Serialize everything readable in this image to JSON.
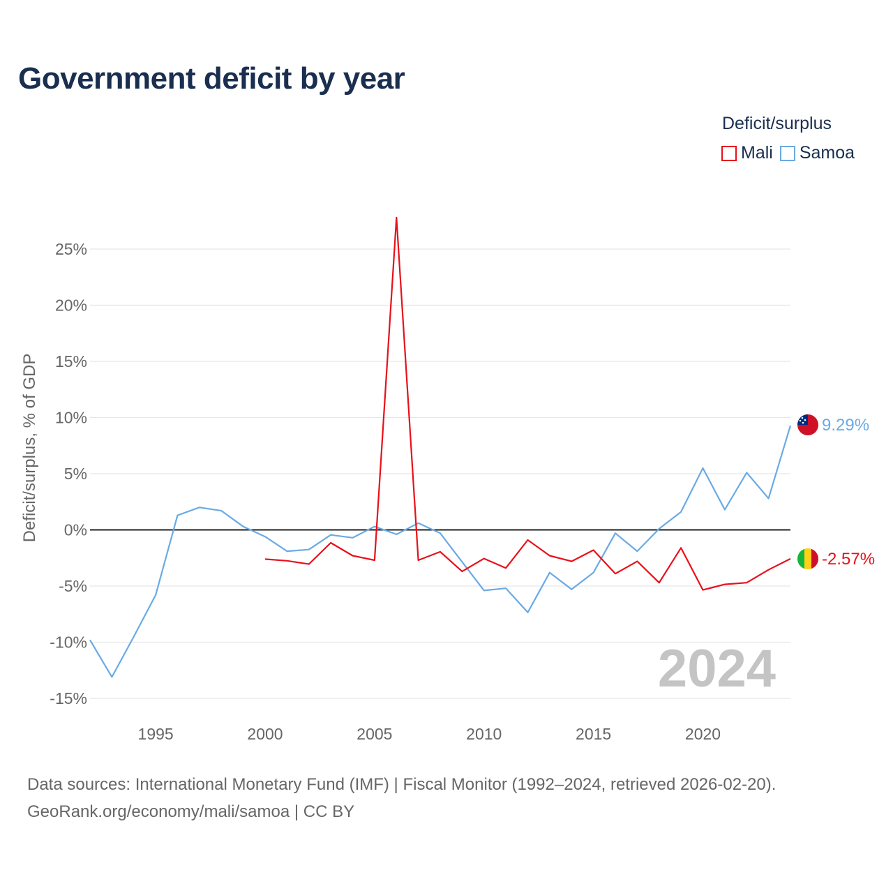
{
  "title": "Government deficit by year",
  "legend": {
    "title": "Deficit/surplus",
    "items": [
      {
        "name": "Mali",
        "color": "#e8101a"
      },
      {
        "name": "Samoa",
        "color": "#6aaae4"
      }
    ]
  },
  "footer": {
    "line1": "Data sources: International Monetary Fund (IMF) | Fiscal Monitor (1992–2024, retrieved 2026-02-20).",
    "line2": "GeoRank.org/economy/mali/samoa | CC BY"
  },
  "chart_data": {
    "type": "line",
    "title": "Government deficit by year",
    "xlabel": "",
    "ylabel": "Deficit/surplus, % of GDP",
    "xlim": [
      1992,
      2024
    ],
    "ylim": [
      -15,
      25
    ],
    "x_ticks": [
      1995,
      2000,
      2005,
      2010,
      2015,
      2020
    ],
    "y_ticks": [
      25,
      20,
      15,
      10,
      5,
      0,
      -5,
      -10,
      -15
    ],
    "y_tick_labels": [
      "25%",
      "20%",
      "15%",
      "10%",
      "5%",
      "0%",
      "-5%",
      "-10%",
      "-15%"
    ],
    "year_watermark": "2024",
    "series": [
      {
        "name": "Mali",
        "color": "#e8101a",
        "end_label": "-2.57%",
        "x": [
          2000,
          2001,
          2002,
          2003,
          2004,
          2005,
          2006,
          2007,
          2008,
          2009,
          2010,
          2011,
          2012,
          2013,
          2014,
          2015,
          2016,
          2017,
          2018,
          2019,
          2020,
          2021,
          2022,
          2023,
          2024
        ],
        "values": [
          -2.6,
          -2.75,
          -3.05,
          -1.15,
          -2.3,
          -2.7,
          27.8,
          -2.7,
          -1.95,
          -3.7,
          -2.55,
          -3.4,
          -0.9,
          -2.3,
          -2.8,
          -1.8,
          -3.9,
          -2.8,
          -4.7,
          -1.6,
          -5.35,
          -4.85,
          -4.7,
          -3.55,
          -2.57
        ]
      },
      {
        "name": "Samoa",
        "color": "#6aaae4",
        "end_label": "9.29%",
        "x": [
          1992,
          1993,
          1994,
          1995,
          1996,
          1997,
          1998,
          1999,
          2000,
          2001,
          2002,
          2003,
          2004,
          2005,
          2006,
          2007,
          2008,
          2009,
          2010,
          2011,
          2012,
          2013,
          2014,
          2015,
          2016,
          2017,
          2018,
          2019,
          2020,
          2021,
          2022,
          2023,
          2024
        ],
        "values": [
          -9.8,
          -13.1,
          -9.5,
          -5.8,
          1.3,
          2.0,
          1.7,
          0.3,
          -0.6,
          -1.9,
          -1.75,
          -0.45,
          -0.7,
          0.3,
          -0.4,
          0.6,
          -0.3,
          -2.85,
          -5.4,
          -5.2,
          -7.35,
          -3.8,
          -5.3,
          -3.8,
          -0.3,
          -1.9,
          0.1,
          1.6,
          5.5,
          1.8,
          5.1,
          2.8,
          9.29
        ]
      }
    ]
  }
}
